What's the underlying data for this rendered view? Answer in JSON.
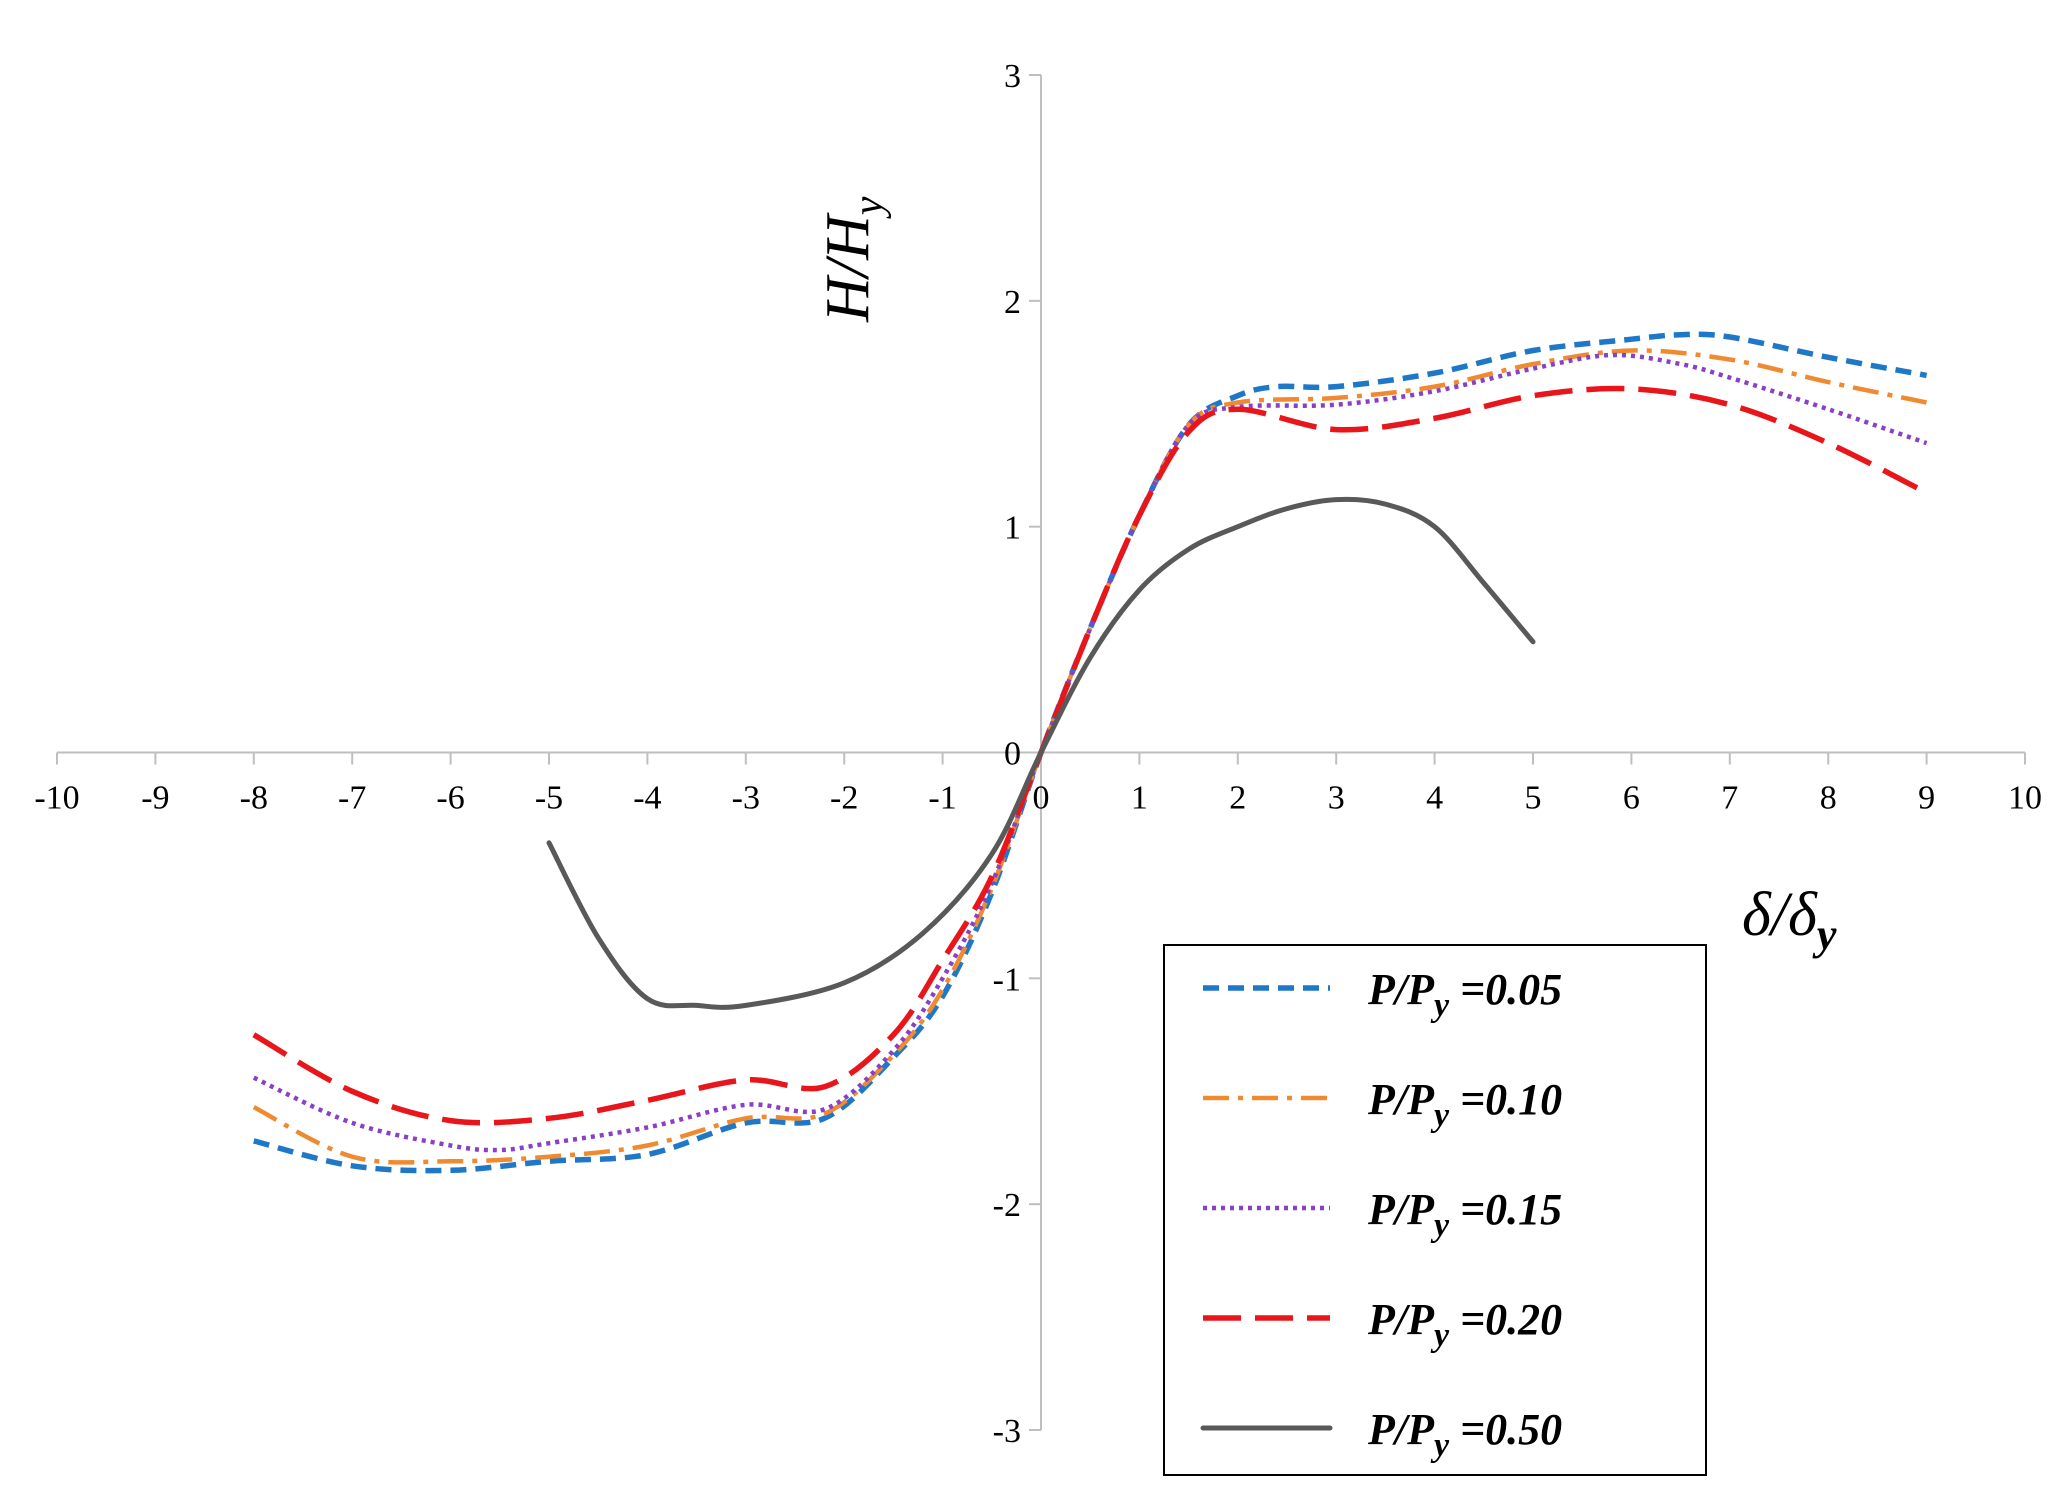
{
  "chart_data": {
    "type": "line",
    "title": "",
    "xlabel": {
      "base": "δ/δ",
      "sub": "y"
    },
    "ylabel": {
      "base": "H/H",
      "sub": "y"
    },
    "xlim": [
      -10,
      10
    ],
    "ylim": [
      -3,
      3
    ],
    "x_ticks": [
      "-10",
      "-9",
      "-8",
      "-7",
      "-6",
      "-5",
      "-4",
      "-3",
      "-2",
      "-1",
      "0",
      "1",
      "2",
      "3",
      "4",
      "5",
      "6",
      "7",
      "8",
      "9",
      "10"
    ],
    "y_ticks": [
      "-3",
      "-2",
      "-1",
      "0",
      "1",
      "2",
      "3"
    ],
    "grid": false,
    "legend_position": "bottom-right",
    "series": [
      {
        "name": "P/Py =0.05",
        "label_base": "P/P",
        "label_sub": "y",
        "label_value": " =0.05",
        "color": "#1f77c8",
        "dash": "short-dash",
        "points": [
          [
            -8,
            -1.72
          ],
          [
            -7,
            -1.83
          ],
          [
            -6,
            -1.85
          ],
          [
            -5,
            -1.81
          ],
          [
            -4,
            -1.78
          ],
          [
            -3,
            -1.64
          ],
          [
            -2.2,
            -1.62
          ],
          [
            -1.5,
            -1.35
          ],
          [
            -1,
            -1.08
          ],
          [
            -0.5,
            -0.62
          ],
          [
            0,
            0
          ],
          [
            0.5,
            0.55
          ],
          [
            1,
            1.05
          ],
          [
            1.5,
            1.45
          ],
          [
            2,
            1.58
          ],
          [
            2.4,
            1.62
          ],
          [
            3,
            1.62
          ],
          [
            4,
            1.68
          ],
          [
            5,
            1.78
          ],
          [
            6,
            1.83
          ],
          [
            6.5,
            1.85
          ],
          [
            7,
            1.84
          ],
          [
            8,
            1.75
          ],
          [
            9,
            1.67
          ]
        ]
      },
      {
        "name": "P/Py =0.10",
        "label_base": "P/P",
        "label_sub": "y",
        "label_value": " =0.10",
        "color": "#f08a30",
        "dash": "dash-dot",
        "points": [
          [
            -8,
            -1.57
          ],
          [
            -7,
            -1.79
          ],
          [
            -6,
            -1.81
          ],
          [
            -5,
            -1.79
          ],
          [
            -4,
            -1.74
          ],
          [
            -3,
            -1.62
          ],
          [
            -2.2,
            -1.6
          ],
          [
            -1.5,
            -1.34
          ],
          [
            -1,
            -1.05
          ],
          [
            -0.5,
            -0.6
          ],
          [
            0,
            0
          ],
          [
            0.5,
            0.55
          ],
          [
            1,
            1.05
          ],
          [
            1.5,
            1.45
          ],
          [
            2,
            1.55
          ],
          [
            3,
            1.57
          ],
          [
            4,
            1.62
          ],
          [
            5,
            1.72
          ],
          [
            6,
            1.78
          ],
          [
            7,
            1.74
          ],
          [
            8,
            1.64
          ],
          [
            9,
            1.55
          ]
        ]
      },
      {
        "name": "P/Py =0.15",
        "label_base": "P/P",
        "label_sub": "y",
        "label_value": " =0.15",
        "color": "#8a3fc8",
        "dash": "dotted",
        "points": [
          [
            -8,
            -1.44
          ],
          [
            -7,
            -1.64
          ],
          [
            -6,
            -1.74
          ],
          [
            -5.5,
            -1.76
          ],
          [
            -5,
            -1.73
          ],
          [
            -4,
            -1.66
          ],
          [
            -3,
            -1.56
          ],
          [
            -2.2,
            -1.58
          ],
          [
            -1.5,
            -1.32
          ],
          [
            -1,
            -1.0
          ],
          [
            -0.5,
            -0.58
          ],
          [
            0,
            0
          ],
          [
            0.5,
            0.55
          ],
          [
            1,
            1.05
          ],
          [
            1.5,
            1.45
          ],
          [
            2,
            1.53
          ],
          [
            3,
            1.54
          ],
          [
            4,
            1.6
          ],
          [
            5,
            1.7
          ],
          [
            5.8,
            1.76
          ],
          [
            6.5,
            1.72
          ],
          [
            7,
            1.66
          ],
          [
            8,
            1.52
          ],
          [
            9,
            1.37
          ]
        ]
      },
      {
        "name": "P/Py =0.20",
        "label_base": "P/P",
        "label_sub": "y",
        "label_value": " =0.20",
        "color": "#e8151b",
        "dash": "long-dash",
        "points": [
          [
            -8,
            -1.25
          ],
          [
            -7,
            -1.5
          ],
          [
            -6,
            -1.63
          ],
          [
            -5,
            -1.62
          ],
          [
            -4,
            -1.54
          ],
          [
            -3,
            -1.45
          ],
          [
            -2.2,
            -1.48
          ],
          [
            -1.5,
            -1.25
          ],
          [
            -1,
            -0.92
          ],
          [
            -0.5,
            -0.55
          ],
          [
            0,
            0
          ],
          [
            0.5,
            0.55
          ],
          [
            1,
            1.05
          ],
          [
            1.5,
            1.42
          ],
          [
            2,
            1.52
          ],
          [
            3,
            1.43
          ],
          [
            4,
            1.48
          ],
          [
            5,
            1.58
          ],
          [
            6,
            1.61
          ],
          [
            7,
            1.54
          ],
          [
            8,
            1.37
          ],
          [
            9,
            1.15
          ]
        ]
      },
      {
        "name": "P/Py =0.50",
        "label_base": "P/P",
        "label_sub": "y",
        "label_value": " =0.50",
        "color": "#595959",
        "dash": "solid",
        "points": [
          [
            -5,
            -0.4
          ],
          [
            -4.5,
            -0.82
          ],
          [
            -4,
            -1.09
          ],
          [
            -3.5,
            -1.12
          ],
          [
            -3,
            -1.12
          ],
          [
            -2,
            -1.02
          ],
          [
            -1.2,
            -0.8
          ],
          [
            -0.5,
            -0.45
          ],
          [
            0,
            0
          ],
          [
            0.5,
            0.42
          ],
          [
            1,
            0.72
          ],
          [
            1.5,
            0.9
          ],
          [
            2,
            1.0
          ],
          [
            2.5,
            1.08
          ],
          [
            3,
            1.12
          ],
          [
            3.5,
            1.1
          ],
          [
            4,
            1.0
          ],
          [
            4.5,
            0.75
          ],
          [
            5,
            0.49
          ]
        ]
      }
    ]
  }
}
